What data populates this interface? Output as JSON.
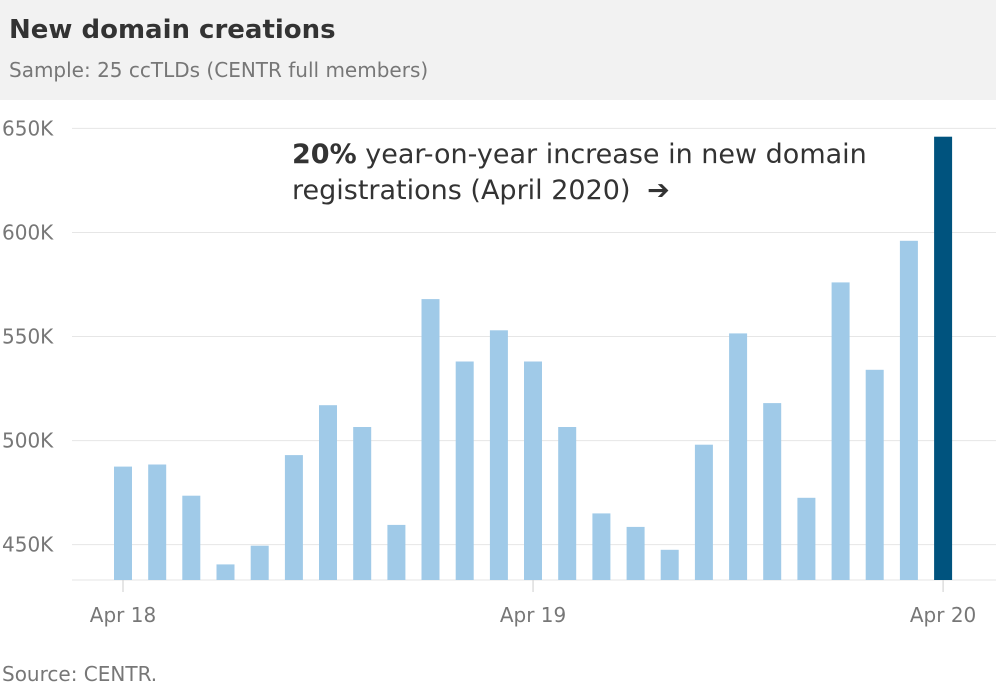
{
  "header": {
    "title": "New domain creations",
    "subtitle": "Sample: 25 ccTLDs (CENTR full members)"
  },
  "annotation": {
    "highlight": "20%",
    "text": "year-on-year increase in new domain registrations (April 2020)",
    "arrow": "➔"
  },
  "footer": {
    "source": "Source: CENTR."
  },
  "colors": {
    "bar": "#a0cae8",
    "highlight_bar": "#00537e",
    "grid": "#e6e6e6",
    "text": "#333333",
    "muted": "#777777"
  },
  "chart_data": {
    "type": "bar",
    "title": "New domain creations",
    "subtitle": "Sample: 25 ccTLDs (CENTR full members)",
    "xlabel": "",
    "ylabel": "",
    "x_tick_labels": [
      {
        "index": 0,
        "label": "Apr 18"
      },
      {
        "index": 12,
        "label": "Apr 19"
      },
      {
        "index": 24,
        "label": "Apr 20"
      }
    ],
    "y_ticks": [
      450000,
      500000,
      550000,
      600000,
      650000
    ],
    "y_tick_labels": [
      "450K",
      "500K",
      "550K",
      "600K",
      "650K"
    ],
    "ylim": [
      433000,
      655000
    ],
    "grid": true,
    "highlight_index": 24,
    "values": [
      487500,
      488500,
      473500,
      440500,
      449500,
      493000,
      517000,
      506500,
      459500,
      568000,
      538000,
      553000,
      538000,
      506500,
      465000,
      458500,
      447500,
      498000,
      551500,
      518000,
      472500,
      576000,
      534000,
      596000,
      646000
    ]
  }
}
